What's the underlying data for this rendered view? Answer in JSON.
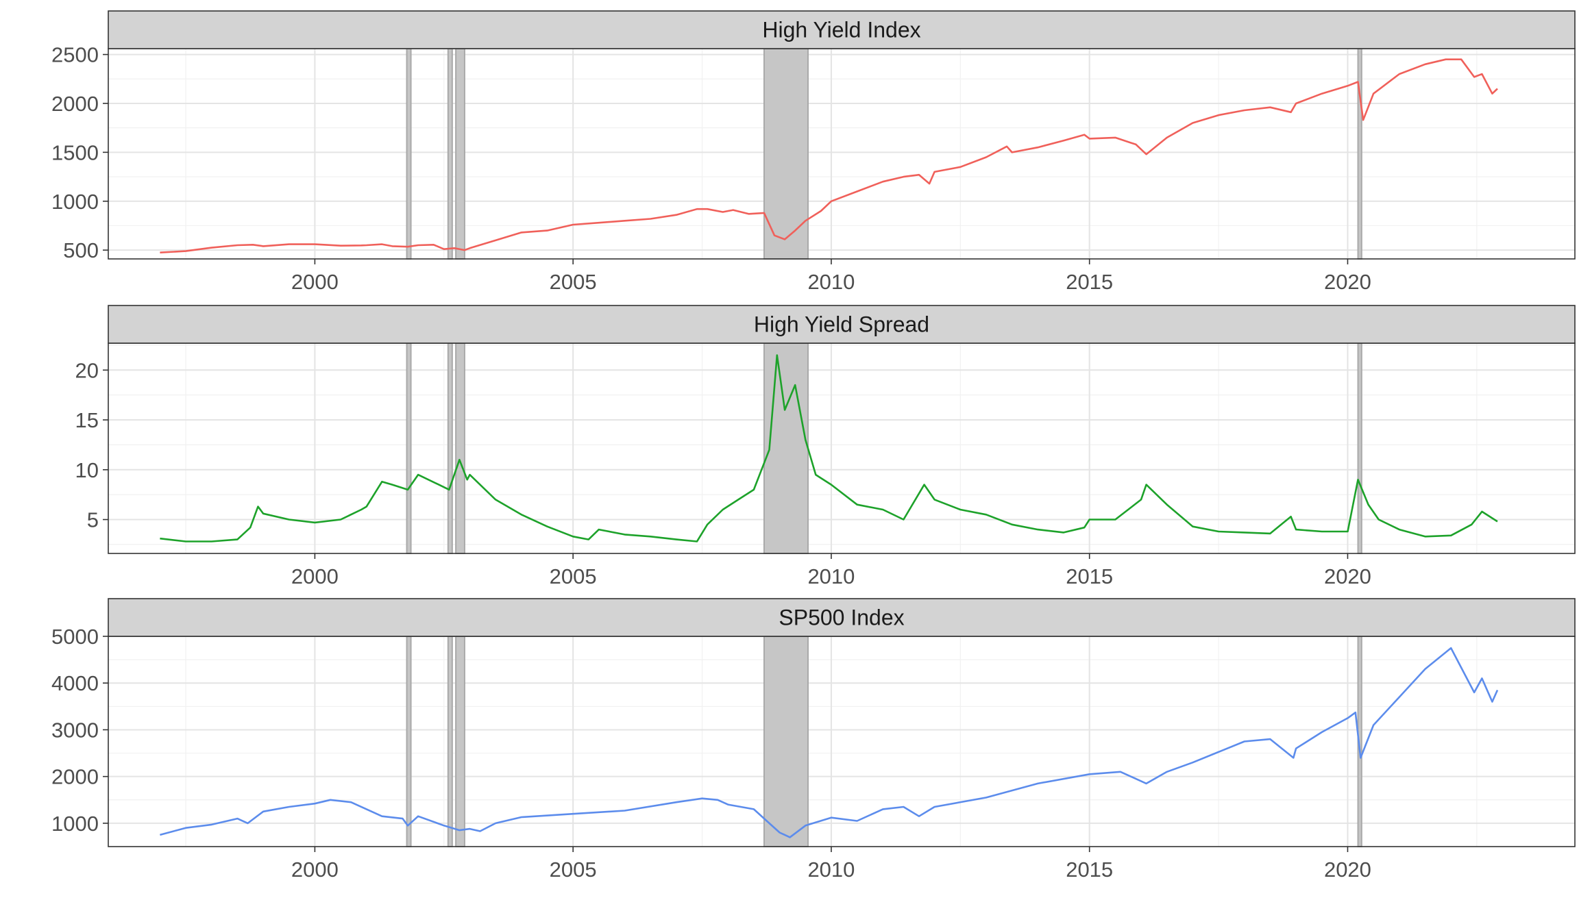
{
  "chart_data": [
    {
      "type": "line",
      "title": "High Yield Index",
      "xlabel": "",
      "ylabel": "",
      "color": "#F0605A",
      "xlim": [
        1996.0,
        2024.4
      ],
      "ylim": [
        410,
        2560
      ],
      "xticks": [
        2000,
        2005,
        2010,
        2015,
        2020
      ],
      "xtick_labels": [
        "2000",
        "2005",
        "2010",
        "2015",
        "2020"
      ],
      "yticks": [
        500,
        1000,
        1500,
        2000,
        2500
      ],
      "ytick_labels": [
        "500",
        "1000",
        "1500",
        "2000",
        "2500"
      ],
      "grid": true,
      "legend": "none",
      "x": [
        1997.0,
        1997.5,
        1998.0,
        1998.5,
        1998.8,
        1999.0,
        1999.5,
        2000.0,
        2000.5,
        2000.9,
        2001.0,
        2001.3,
        2001.5,
        2001.8,
        2002.0,
        2002.3,
        2002.5,
        2002.7,
        2002.9,
        2003.0,
        2003.5,
        2004.0,
        2004.5,
        2005.0,
        2005.5,
        2006.0,
        2006.5,
        2007.0,
        2007.4,
        2007.6,
        2007.9,
        2008.1,
        2008.4,
        2008.7,
        2008.9,
        2009.1,
        2009.3,
        2009.5,
        2009.8,
        2010.0,
        2010.5,
        2011.0,
        2011.4,
        2011.7,
        2011.9,
        2012.0,
        2012.5,
        2013.0,
        2013.4,
        2013.5,
        2014.0,
        2014.5,
        2014.9,
        2015.0,
        2015.5,
        2015.9,
        2016.1,
        2016.5,
        2017.0,
        2017.5,
        2018.0,
        2018.5,
        2018.9,
        2019.0,
        2019.5,
        2020.0,
        2020.2,
        2020.3,
        2020.5,
        2021.0,
        2021.5,
        2021.9,
        2022.2,
        2022.45,
        2022.6,
        2022.8,
        2022.9
      ],
      "y": [
        475,
        490,
        525,
        550,
        555,
        540,
        560,
        560,
        545,
        548,
        550,
        560,
        540,
        535,
        550,
        555,
        510,
        520,
        500,
        520,
        600,
        680,
        700,
        760,
        780,
        800,
        820,
        860,
        920,
        920,
        890,
        910,
        870,
        880,
        650,
        610,
        700,
        800,
        900,
        1000,
        1100,
        1200,
        1250,
        1270,
        1180,
        1300,
        1350,
        1450,
        1560,
        1500,
        1550,
        1620,
        1680,
        1640,
        1650,
        1580,
        1480,
        1650,
        1800,
        1880,
        1930,
        1960,
        1910,
        2000,
        2100,
        2180,
        2220,
        1830,
        2100,
        2300,
        2400,
        2450,
        2450,
        2270,
        2300,
        2100,
        2150
      ]
    },
    {
      "type": "line",
      "title": "High Yield Spread",
      "xlabel": "",
      "ylabel": "",
      "color": "#1DA22A",
      "xlim": [
        1996.0,
        2024.4
      ],
      "ylim": [
        1.6,
        22.7
      ],
      "xticks": [
        2000,
        2005,
        2010,
        2015,
        2020
      ],
      "xtick_labels": [
        "2000",
        "2005",
        "2010",
        "2015",
        "2020"
      ],
      "yticks": [
        5,
        10,
        15,
        20
      ],
      "ytick_labels": [
        "5",
        "10",
        "15",
        "20"
      ],
      "grid": true,
      "legend": "none",
      "x": [
        1997.0,
        1997.5,
        1998.0,
        1998.5,
        1998.75,
        1998.9,
        1999.0,
        1999.5,
        2000.0,
        2000.5,
        2000.9,
        2001.0,
        2001.3,
        2001.5,
        2001.8,
        2002.0,
        2002.4,
        2002.6,
        2002.8,
        2002.95,
        2003.0,
        2003.5,
        2004.0,
        2004.5,
        2005.0,
        2005.3,
        2005.5,
        2006.0,
        2006.5,
        2007.0,
        2007.4,
        2007.6,
        2007.9,
        2008.2,
        2008.5,
        2008.8,
        2008.95,
        2009.1,
        2009.3,
        2009.5,
        2009.7,
        2010.0,
        2010.5,
        2011.0,
        2011.4,
        2011.8,
        2012.0,
        2012.5,
        2013.0,
        2013.5,
        2014.0,
        2014.5,
        2014.9,
        2015.0,
        2015.5,
        2016.0,
        2016.1,
        2016.5,
        2017.0,
        2017.5,
        2018.0,
        2018.5,
        2018.9,
        2019.0,
        2019.5,
        2020.0,
        2020.2,
        2020.4,
        2020.6,
        2021.0,
        2021.5,
        2022.0,
        2022.4,
        2022.6,
        2022.9
      ],
      "y": [
        3.1,
        2.8,
        2.8,
        3.0,
        4.2,
        6.3,
        5.6,
        5.0,
        4.7,
        5.0,
        6.0,
        6.3,
        8.8,
        8.5,
        8.0,
        9.5,
        8.5,
        8.0,
        11.0,
        9.0,
        9.5,
        7.0,
        5.5,
        4.3,
        3.3,
        3.0,
        4.0,
        3.5,
        3.3,
        3.0,
        2.8,
        4.5,
        6.0,
        7.0,
        8.0,
        12.0,
        21.5,
        16.0,
        18.5,
        13.0,
        9.5,
        8.5,
        6.5,
        6.0,
        5.0,
        8.5,
        7.0,
        6.0,
        5.5,
        4.5,
        4.0,
        3.7,
        4.2,
        5.0,
        5.0,
        7.0,
        8.5,
        6.5,
        4.3,
        3.8,
        3.7,
        3.6,
        5.3,
        4.0,
        3.8,
        3.8,
        9.0,
        6.5,
        5.0,
        4.0,
        3.3,
        3.4,
        4.5,
        5.8,
        4.8
      ]
    },
    {
      "type": "line",
      "title": "SP500 Index",
      "xlabel": "",
      "ylabel": "",
      "color": "#5C8CEC",
      "xlim": [
        1996.0,
        2024.4
      ],
      "ylim": [
        500,
        5000
      ],
      "xticks": [
        2000,
        2005,
        2010,
        2015,
        2020
      ],
      "xtick_labels": [
        "2000",
        "2005",
        "2010",
        "2015",
        "2020"
      ],
      "yticks": [
        1000,
        2000,
        3000,
        4000,
        5000
      ],
      "ytick_labels": [
        "1000",
        "2000",
        "3000",
        "4000",
        "5000"
      ],
      "grid": true,
      "legend": "none",
      "x": [
        1997.0,
        1997.5,
        1998.0,
        1998.5,
        1998.7,
        1999.0,
        1999.5,
        2000.0,
        2000.3,
        2000.7,
        2001.0,
        2001.3,
        2001.7,
        2001.8,
        2002.0,
        2002.5,
        2002.8,
        2003.0,
        2003.2,
        2003.5,
        2004.0,
        2005.0,
        2006.0,
        2007.0,
        2007.5,
        2007.8,
        2008.0,
        2008.5,
        2008.8,
        2009.0,
        2009.2,
        2009.5,
        2010.0,
        2010.5,
        2011.0,
        2011.4,
        2011.7,
        2012.0,
        2013.0,
        2014.0,
        2015.0,
        2015.6,
        2016.1,
        2016.5,
        2017.0,
        2018.0,
        2018.5,
        2018.95,
        2019.0,
        2019.5,
        2020.0,
        2020.15,
        2020.25,
        2020.5,
        2021.0,
        2021.5,
        2022.0,
        2022.45,
        2022.6,
        2022.8,
        2022.9
      ],
      "y": [
        750,
        900,
        970,
        1100,
        1000,
        1250,
        1350,
        1420,
        1500,
        1450,
        1300,
        1150,
        1100,
        950,
        1150,
        950,
        850,
        880,
        830,
        1000,
        1130,
        1200,
        1270,
        1450,
        1530,
        1500,
        1400,
        1300,
        1000,
        800,
        700,
        950,
        1120,
        1050,
        1300,
        1350,
        1150,
        1350,
        1550,
        1850,
        2050,
        2100,
        1850,
        2100,
        2300,
        2750,
        2800,
        2400,
        2600,
        2950,
        3250,
        3370,
        2400,
        3100,
        3700,
        4300,
        4750,
        3800,
        4100,
        3600,
        3850
      ]
    }
  ],
  "shading_bands": [
    [
      2001.78,
      2001.86
    ],
    [
      2002.58,
      2002.66
    ],
    [
      2002.73,
      2002.9
    ],
    [
      2008.7,
      2009.55
    ],
    [
      2020.2,
      2020.27
    ]
  ],
  "shading_color": "#c6c6c6",
  "shading_edge_color": "#a9a9a9",
  "strip_color": "#d3d3d3"
}
